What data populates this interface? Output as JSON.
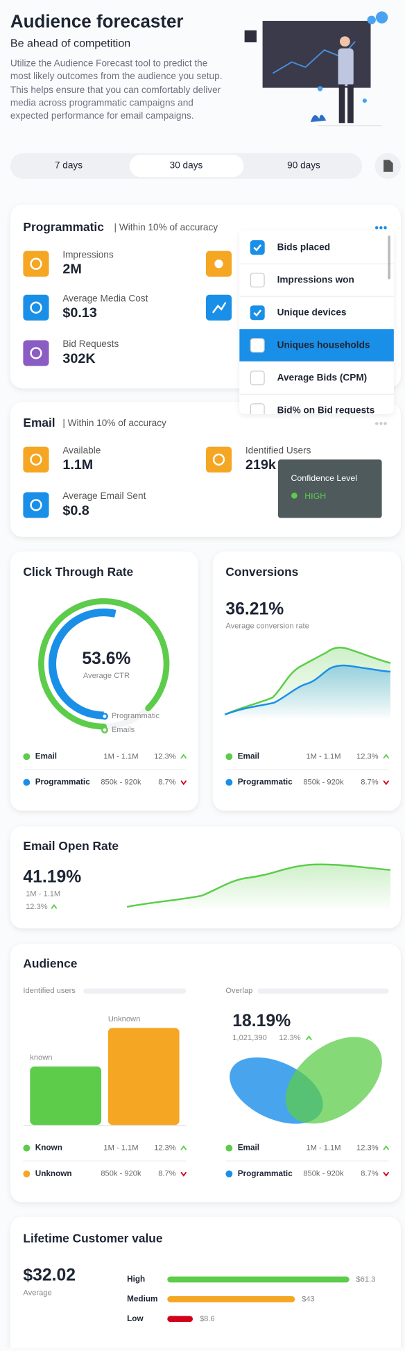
{
  "header": {
    "title": "Audience forecaster",
    "subtitle": "Be ahead of competition",
    "description": "Utilize the Audience Forecast tool to predict the most likely outcomes from the audience you setup. This helps ensure that you can comfortably deliver media across programmatic campaigns and expected performance for email campaigns."
  },
  "tabs": [
    "7 days",
    "30 days",
    "90 days"
  ],
  "programmatic": {
    "title": "Programmatic",
    "note": "| Within 10% of accuracy",
    "metrics": [
      {
        "label": "Impressions",
        "value": "2M"
      },
      {
        "label": "Average Media Cost",
        "value": "$0.13"
      },
      {
        "label": "Bid Requests",
        "value": "302K"
      }
    ]
  },
  "dropdown": {
    "options": [
      {
        "label": "Bids placed",
        "checked": true
      },
      {
        "label": "Impressions won",
        "checked": false
      },
      {
        "label": "Unique devices",
        "checked": true
      },
      {
        "label": "Uniques households",
        "checked": false
      },
      {
        "label": "Average Bids (CPM)",
        "checked": false
      },
      {
        "label": "Bid% on Bid requests",
        "checked": false
      }
    ]
  },
  "email": {
    "title": "Email",
    "note": "| Within 10% of accuracy",
    "metrics": [
      {
        "label": "Available",
        "value": "1.1M"
      },
      {
        "label": "Average Email Sent",
        "value": "$0.8"
      },
      {
        "label": "Identified Users",
        "value": "219k"
      }
    ],
    "tooltip": {
      "title": "Confidence Level",
      "status": "HIGH"
    }
  },
  "ctr": {
    "title": "Click Through Rate",
    "value": 53.6,
    "value_label": "53.6%",
    "caption": "Average CTR",
    "color": "#1a8fe8",
    "legend": [
      {
        "name": "Programmatic",
        "color": "#1a8fe8"
      },
      {
        "name": "Emails",
        "color": "#5ccc4a"
      }
    ],
    "rows": [
      {
        "name": "Email",
        "color": "#5ccc4a",
        "range": "1M - 1.1M",
        "change": "12.3%",
        "trend": "up"
      },
      {
        "name": "Programmatic",
        "color": "#1a8fe8",
        "range": "850k - 920k",
        "change": "8.7%",
        "trend": "down"
      }
    ]
  },
  "conversions": {
    "title": "Conversions",
    "value": "36.21%",
    "caption": "Average conversion rate",
    "rows": [
      {
        "name": "Email",
        "color": "#5ccc4a",
        "range": "1M - 1.1M",
        "change": "12.3%",
        "trend": "up"
      },
      {
        "name": "Programmatic",
        "color": "#1a8fe8",
        "range": "850k - 920k",
        "change": "8.7%",
        "trend": "down"
      }
    ]
  },
  "open_rate": {
    "title": "Email Open Rate",
    "value": "41.19%",
    "range": "1M - 1.1M",
    "change": "12.3%",
    "trend": "up"
  },
  "audience": {
    "title": "Audience",
    "identified": {
      "label": "Identified users",
      "bars": [
        {
          "name": "known",
          "color": "#5ccc4a"
        },
        {
          "name": "Unknown",
          "color": "#f5a623"
        }
      ],
      "rows": [
        {
          "name": "Known",
          "color": "#5ccc4a",
          "range": "1M - 1.1M",
          "change": "12.3%",
          "trend": "up"
        },
        {
          "name": "Unknown",
          "color": "#f5a623",
          "range": "850k - 920k",
          "change": "8.7%",
          "trend": "down"
        }
      ]
    },
    "overlap": {
      "label": "Overlap",
      "value": "18.19%",
      "count": "1,021,390",
      "change": "12.3%",
      "trend": "up",
      "rows": [
        {
          "name": "Email",
          "color": "#5ccc4a",
          "range": "1M - 1.1M",
          "change": "12.3%",
          "trend": "up"
        },
        {
          "name": "Programmatic",
          "color": "#1a8fe8",
          "range": "850k - 920k",
          "change": "8.7%",
          "trend": "down"
        }
      ]
    }
  },
  "lifetime": {
    "title": "Lifetime Customer value",
    "value": "$32.02",
    "caption": "Average",
    "chart_data": {
      "type": "bar",
      "categories": [
        "High",
        "Medium",
        "Low"
      ],
      "values": [
        61.3,
        43,
        8.6
      ],
      "value_labels": [
        "$61.3",
        "$43",
        "$8.6"
      ],
      "colors": [
        "#5ccc4a",
        "#f5a623",
        "#d0021b"
      ]
    }
  }
}
